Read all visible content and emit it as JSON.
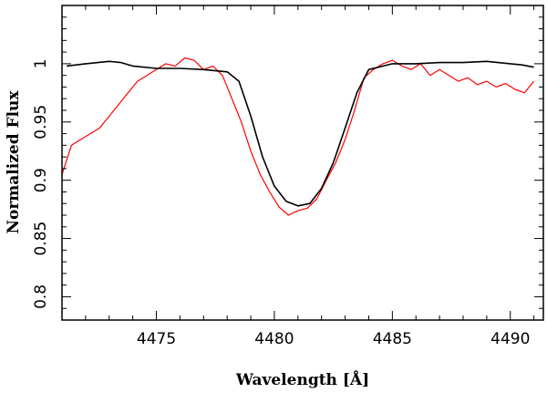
{
  "chart_data": {
    "type": "line",
    "title": "",
    "xlabel": "Wavelength [Å]",
    "ylabel": "Normalized Flux",
    "xlim": [
      4471.0,
      4491.4
    ],
    "ylim": [
      0.78,
      1.05
    ],
    "x_ticks": [
      4475,
      4480,
      4485,
      4490
    ],
    "y_ticks": [
      0.8,
      0.85,
      0.9,
      0.95,
      1
    ],
    "x_tick_labels": [
      "4475",
      "4480",
      "4485",
      "4490"
    ],
    "y_tick_labels": [
      "0.8",
      "0.85",
      "0.9",
      "0.95",
      "1"
    ],
    "grid": false,
    "series": [
      {
        "color": "#ff0000",
        "x": [
          4471.0,
          4471.4,
          4471.8,
          4472.2,
          4472.6,
          4473.0,
          4473.4,
          4473.8,
          4474.2,
          4474.6,
          4475.0,
          4475.4,
          4475.8,
          4476.2,
          4476.6,
          4477.0,
          4477.4,
          4477.8,
          4478.2,
          4478.6,
          4479.0,
          4479.4,
          4479.8,
          4480.2,
          4480.6,
          4481.0,
          4481.4,
          4481.8,
          4482.2,
          4482.6,
          4483.0,
          4483.4,
          4483.8,
          4484.2,
          4484.6,
          4485.0,
          4485.4,
          4485.8,
          4486.2,
          4486.6,
          4487.0,
          4487.4,
          4487.8,
          4488.2,
          4488.6,
          4489.0,
          4489.4,
          4489.8,
          4490.2,
          4490.6,
          4491.0
        ],
        "y": [
          0.905,
          0.93,
          0.935,
          0.94,
          0.945,
          0.955,
          0.965,
          0.975,
          0.985,
          0.99,
          0.995,
          1.0,
          0.998,
          1.005,
          1.003,
          0.995,
          0.998,
          0.99,
          0.97,
          0.95,
          0.925,
          0.905,
          0.89,
          0.877,
          0.87,
          0.874,
          0.876,
          0.884,
          0.9,
          0.915,
          0.935,
          0.96,
          0.988,
          0.995,
          1.0,
          1.003,
          0.998,
          0.995,
          1.0,
          0.99,
          0.995,
          0.99,
          0.985,
          0.988,
          0.982,
          0.985,
          0.98,
          0.983,
          0.978,
          0.975,
          0.985
        ]
      },
      {
        "color": "#000000",
        "x": [
          4471.2,
          4472.0,
          4473.0,
          4473.5,
          4474.0,
          4475.0,
          4476.0,
          4477.0,
          4478.0,
          4478.5,
          4479.0,
          4479.5,
          4480.0,
          4480.5,
          4481.0,
          4481.5,
          4482.0,
          4482.5,
          4483.0,
          4483.5,
          4484.0,
          4485.0,
          4486.0,
          4487.0,
          4488.0,
          4489.0,
          4490.0,
          4490.5,
          4491.0
        ],
        "y": [
          0.998,
          1.0,
          1.002,
          1.001,
          0.998,
          0.996,
          0.996,
          0.995,
          0.993,
          0.985,
          0.955,
          0.92,
          0.895,
          0.882,
          0.878,
          0.88,
          0.893,
          0.915,
          0.945,
          0.975,
          0.995,
          1.0,
          1.0,
          1.001,
          1.001,
          1.002,
          1.0,
          0.999,
          0.997
        ]
      }
    ]
  }
}
